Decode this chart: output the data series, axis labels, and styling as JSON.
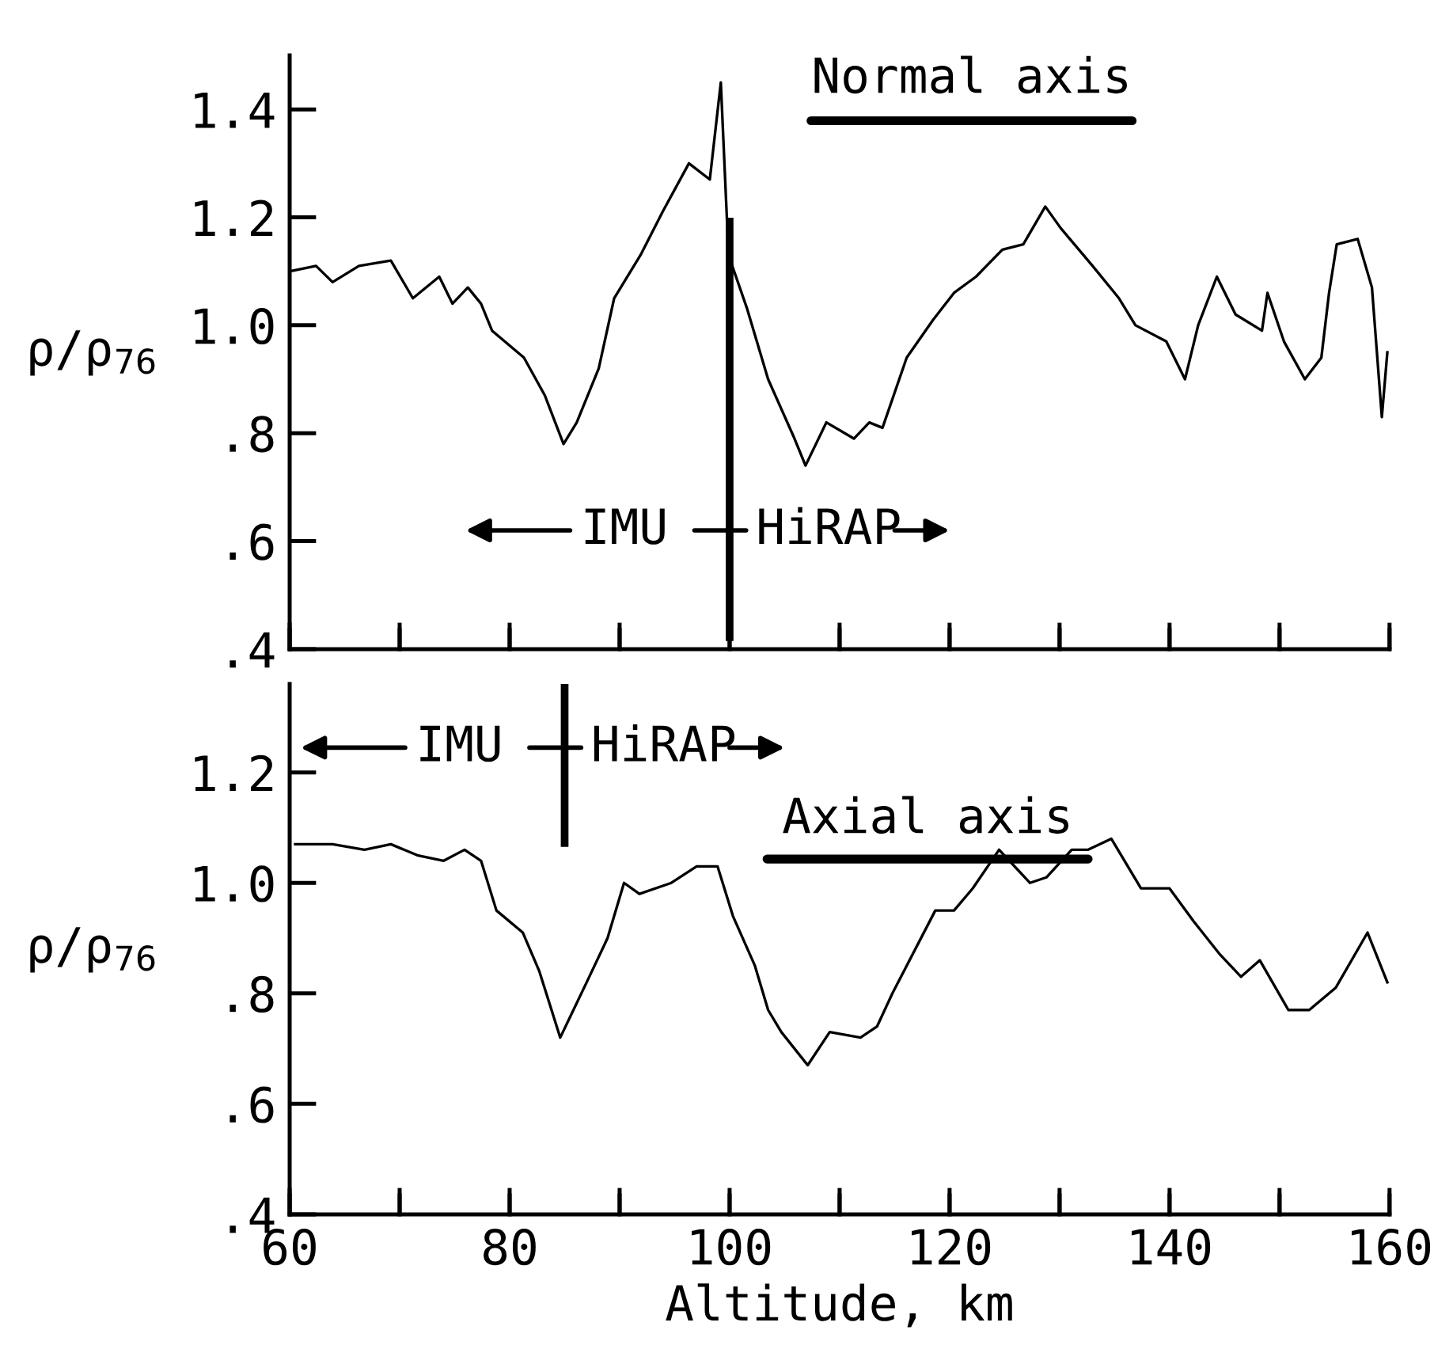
{
  "chart_data": [
    {
      "type": "line",
      "title": "Normal axis",
      "ylabel": "ρ/ρ$_{76}$",
      "x": [
        60,
        62.4,
        63.9,
        66.3,
        69.2,
        71.2,
        73.6,
        74.8,
        76.2,
        77.4,
        78.4,
        81.3,
        83.2,
        84.9,
        86.1,
        88.1,
        89.5,
        91.9,
        93.9,
        96.3,
        98.2,
        99.2,
        99.9,
        101.6,
        103.5,
        105.9,
        106.9,
        108.8,
        111.3,
        112.7,
        113.9,
        116.1,
        118.5,
        120.4,
        122.4,
        124.8,
        126.7,
        128.7,
        130.1,
        133.0,
        135.4,
        136.9,
        139.7,
        141.4,
        142.6,
        144.3,
        146.0,
        148.4,
        148.9,
        150.4,
        152.3,
        153.8,
        154.5,
        155.2,
        157.1,
        158.4,
        159.3,
        159.8
      ],
      "series": [
        {
          "color": "#000000",
          "values": [
            1.1,
            1.11,
            1.08,
            1.11,
            1.12,
            1.05,
            1.09,
            1.04,
            1.07,
            1.04,
            0.99,
            0.94,
            0.87,
            0.78,
            0.82,
            0.92,
            1.05,
            1.13,
            1.21,
            1.3,
            1.27,
            1.45,
            1.13,
            1.03,
            0.9,
            0.79,
            0.74,
            0.82,
            0.79,
            0.82,
            0.81,
            0.94,
            1.01,
            1.06,
            1.09,
            1.14,
            1.15,
            1.22,
            1.18,
            1.11,
            1.05,
            1.0,
            0.97,
            0.9,
            1.0,
            1.09,
            1.02,
            0.99,
            1.06,
            0.97,
            0.9,
            0.94,
            1.06,
            1.15,
            1.16,
            1.07,
            0.83,
            0.95
          ]
        }
      ],
      "ref_lines": [
        {
          "axis": "x",
          "value": 100
        }
      ],
      "annotations": [
        "IMU",
        "HiRAP"
      ],
      "xlim": [
        60,
        160
      ],
      "xticks": [
        {
          "value": 60,
          "label": null
        },
        {
          "value": 70,
          "label": null
        },
        {
          "value": 80,
          "label": null
        },
        {
          "value": 90,
          "label": null
        },
        {
          "value": 100,
          "label": null
        },
        {
          "value": 110,
          "label": null
        },
        {
          "value": 120,
          "label": null
        },
        {
          "value": 130,
          "label": null
        },
        {
          "value": 140,
          "label": null
        },
        {
          "value": 150,
          "label": null
        },
        {
          "value": 160,
          "label": null
        }
      ],
      "ylim": [
        0.4,
        1.5
      ],
      "yticks": [
        {
          "value": 0.4,
          "label": ".4"
        },
        {
          "value": 0.6,
          "label": ".6"
        },
        {
          "value": 0.8,
          "label": ".8"
        },
        {
          "value": 1.0,
          "label": "1.0"
        },
        {
          "value": 1.2,
          "label": "1.2"
        },
        {
          "value": 1.4,
          "label": "1.4"
        }
      ],
      "tick_labels": "y",
      "grid": false,
      "legend": false,
      "marker": "none",
      "line_style": "solid"
    },
    {
      "type": "line",
      "title": "Axial axis",
      "ylabel": "ρ/ρ$_{76}$",
      "xlabel": "Altitude, km",
      "x": [
        60.5,
        63.9,
        66.8,
        69.2,
        71.6,
        74.0,
        75.9,
        77.4,
        78.8,
        81.2,
        82.7,
        84.6,
        85.8,
        87.0,
        88.9,
        90.4,
        91.8,
        94.7,
        97.0,
        98.9,
        100.3,
        102.3,
        103.5,
        104.7,
        107.1,
        109.1,
        111.9,
        113.4,
        114.8,
        118.7,
        120.4,
        122.1,
        124.5,
        127.3,
        128.8,
        131.1,
        132.6,
        134.7,
        137.4,
        140.0,
        142.2,
        144.6,
        146.5,
        148.2,
        150.8,
        152.7,
        155.1,
        158.0,
        159.8
      ],
      "series": [
        {
          "color": "#000000",
          "values": [
            1.07,
            1.07,
            1.06,
            1.07,
            1.05,
            1.04,
            1.06,
            1.04,
            0.95,
            0.91,
            0.84,
            0.72,
            0.77,
            0.82,
            0.9,
            1.0,
            0.98,
            1.0,
            1.03,
            1.03,
            0.94,
            0.85,
            0.77,
            0.73,
            0.67,
            0.73,
            0.72,
            0.74,
            0.8,
            0.95,
            0.95,
            0.99,
            1.06,
            1.0,
            1.01,
            1.06,
            1.06,
            1.08,
            0.99,
            0.99,
            0.93,
            0.87,
            0.83,
            0.86,
            0.77,
            0.77,
            0.81,
            0.91,
            0.82
          ]
        }
      ],
      "ref_lines": [
        {
          "axis": "x",
          "value": 85
        }
      ],
      "annotations": [
        "IMU",
        "HiRAP"
      ],
      "xlim": [
        60,
        160
      ],
      "xticks": [
        60,
        {
          "value": 70,
          "label": null
        },
        80,
        {
          "value": 90,
          "label": null
        },
        100,
        {
          "value": 110,
          "label": null
        },
        120,
        {
          "value": 130,
          "label": null
        },
        140,
        {
          "value": 150,
          "label": null
        },
        160
      ],
      "ylim": [
        0.4,
        1.36
      ],
      "yticks": [
        {
          "value": 0.4,
          "label": ".4"
        },
        {
          "value": 0.6,
          "label": ".6"
        },
        {
          "value": 0.8,
          "label": ".8"
        },
        {
          "value": 1.0,
          "label": "1.0"
        },
        {
          "value": 1.2,
          "label": "1.2"
        }
      ],
      "grid": false,
      "legend": false,
      "marker": "none",
      "line_style": "solid"
    }
  ]
}
